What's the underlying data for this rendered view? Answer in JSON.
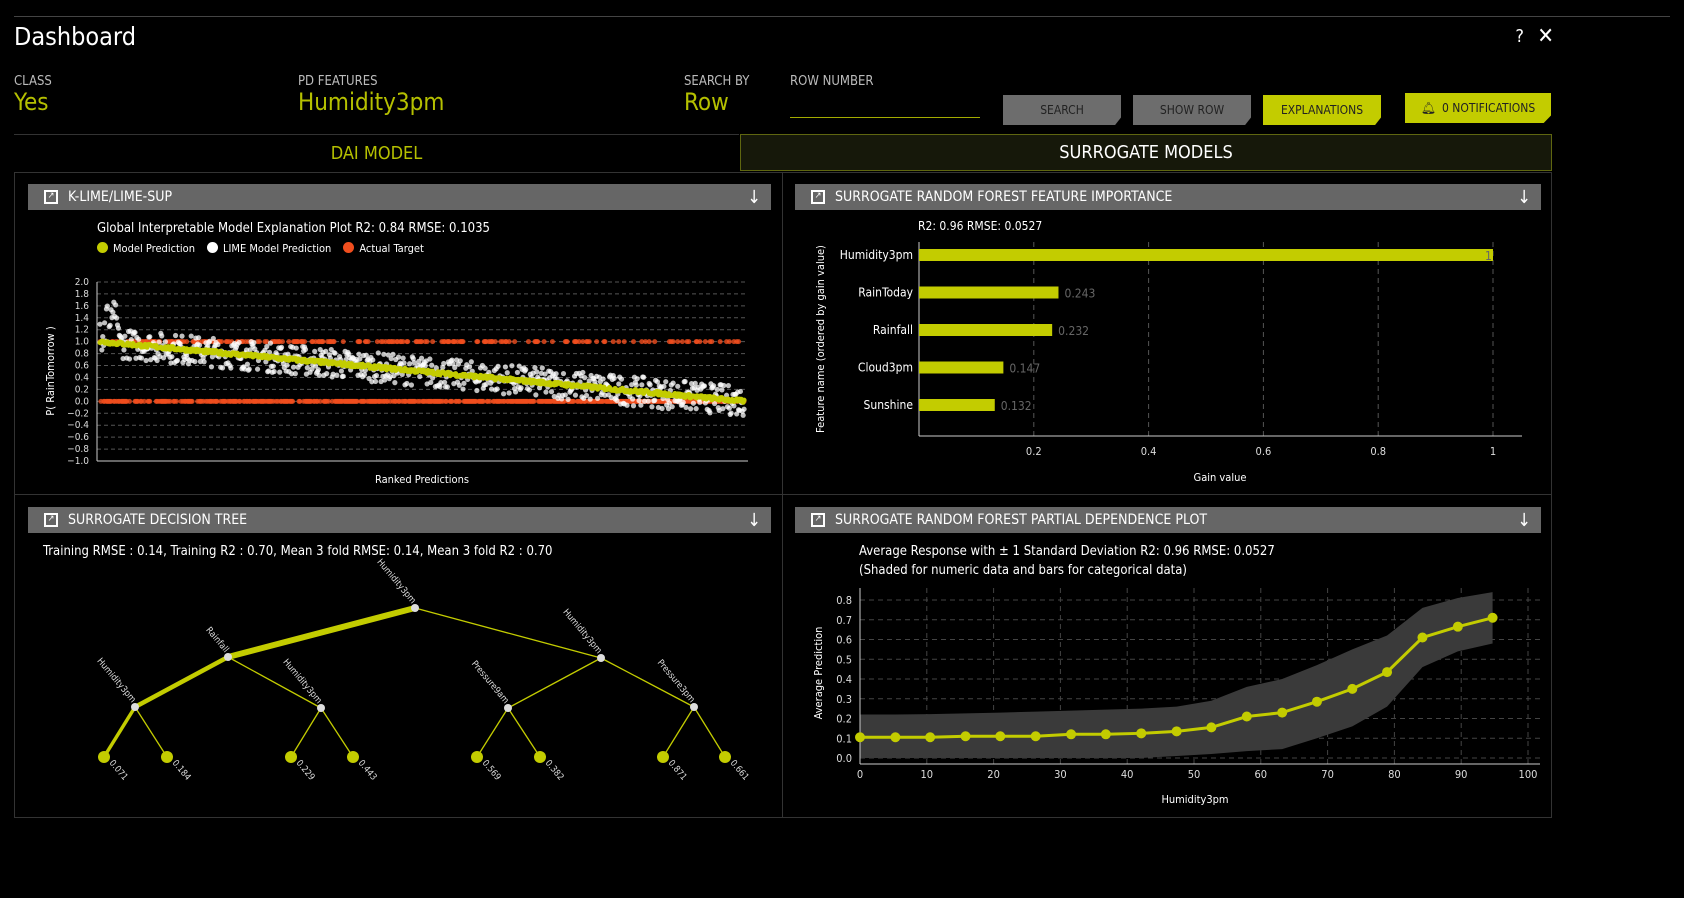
{
  "app": {
    "title": "Dashboard",
    "help_icon": "?",
    "close_icon": "✕"
  },
  "header": {
    "class_label": "CLASS",
    "class_value": "Yes",
    "pd_label": "PD FEATURES",
    "pd_value": "Humidity3pm",
    "search_by_label": "SEARCH BY",
    "search_by_value": "Row",
    "row_number_label": "ROW NUMBER",
    "row_number_value": "",
    "search_btn": "SEARCH",
    "show_row_btn": "SHOW ROW",
    "explanations_btn": "EXPLANATIONS",
    "notifications_btn": "0 NOTIFICATIONS"
  },
  "tabs": [
    {
      "label": "DAI MODEL",
      "active": false
    },
    {
      "label": "SURROGATE MODELS",
      "active": true
    }
  ],
  "colors": {
    "accent": "#c3cc00",
    "actual": "#f04e1e",
    "lime": "#ffffff",
    "panel_header": "#666666"
  },
  "panels": {
    "lime": {
      "title": "K-LIME/LIME-SUP",
      "download_icon": "↓"
    },
    "rf_importance": {
      "title": "SURROGATE RANDOM FOREST FEATURE IMPORTANCE",
      "download_icon": "↓"
    },
    "tree": {
      "title": "SURROGATE DECISION TREE",
      "download_icon": "↓",
      "stats": "Training RMSE : 0.14, Training R2 : 0.70, Mean 3 fold RMSE: 0.14, Mean 3 fold R2 : 0.70"
    },
    "pdp": {
      "title": "SURROGATE RANDOM FOREST PARTIAL DEPENDENCE PLOT",
      "download_icon": "↓"
    }
  },
  "chart_data": [
    {
      "type": "scatter",
      "title": "Global Interpretable Model Explanation Plot R2: 0.84 RMSE: 0.1035",
      "xlabel": "Ranked Predictions",
      "ylabel": "P( RainTomorrow )",
      "ylim": [
        -1,
        2
      ],
      "yticks": [
        "2.0",
        "1.8",
        "1.6",
        "1.4",
        "1.2",
        "1.0",
        "0.8",
        "0.6",
        "0.4",
        "0.2",
        "0.0",
        "−0.2",
        "−0.4",
        "−0.6",
        "−0.8",
        "−1.0"
      ],
      "legend": [
        {
          "name": "Model Prediction",
          "color": "#c3cc00"
        },
        {
          "name": "LIME Model Prediction",
          "color": "#ffffff"
        },
        {
          "name": "Actual Target",
          "color": "#f04e1e"
        }
      ],
      "model_prediction_trend": {
        "start": 1.0,
        "end": 0.0
      },
      "actual_target_values": [
        0,
        1
      ],
      "grid": true
    },
    {
      "type": "bar",
      "orientation": "horizontal",
      "title": "R2: 0.96 RMSE: 0.0527",
      "xlabel": "Gain value",
      "ylabel": "Feature name (ordered by gain value)",
      "categories": [
        "Humidity3pm",
        "RainToday",
        "Rainfall",
        "Cloud3pm",
        "Sunshine"
      ],
      "values": [
        1,
        0.243,
        0.232,
        0.147,
        0.132
      ],
      "value_labels": [
        "1",
        "0.243",
        "0.232",
        "0.147",
        "0.132"
      ],
      "xlim": [
        0,
        1.05
      ],
      "xticks": [
        "0.2",
        "0.4",
        "0.6",
        "0.8",
        "1"
      ],
      "grid": true
    },
    {
      "type": "line",
      "title": "Average Response with ± 1 Standard Deviation R2: 0.96 RMSE: 0.0527",
      "subtitle": "(Shaded for numeric data and bars for categorical data)",
      "xlabel": "Humidity3pm",
      "ylabel": "Average Prediction",
      "xlim": [
        0,
        100
      ],
      "ylim": [
        0,
        0.85
      ],
      "xticks": [
        "0",
        "10",
        "20",
        "30",
        "40",
        "50",
        "60",
        "70",
        "80",
        "90",
        "100"
      ],
      "yticks": [
        "0.0",
        "0.1",
        "0.2",
        "0.3",
        "0.4",
        "0.5",
        "0.6",
        "0.7",
        "0.8"
      ],
      "x": [
        0,
        5.3,
        10.5,
        15.8,
        21,
        26.3,
        31.6,
        36.8,
        42.1,
        47.4,
        52.6,
        57.9,
        63.2,
        68.4,
        73.7,
        78.9,
        84.2,
        89.5,
        94.7
      ],
      "y": [
        0.105,
        0.105,
        0.105,
        0.11,
        0.11,
        0.11,
        0.12,
        0.12,
        0.125,
        0.135,
        0.155,
        0.21,
        0.23,
        0.285,
        0.35,
        0.435,
        0.61,
        0.665,
        0.71
      ],
      "upper": [
        0.22,
        0.22,
        0.222,
        0.226,
        0.23,
        0.235,
        0.24,
        0.245,
        0.25,
        0.26,
        0.29,
        0.36,
        0.4,
        0.47,
        0.55,
        0.62,
        0.76,
        0.81,
        0.84
      ],
      "lower": [
        0,
        0,
        0,
        0,
        0,
        0,
        0,
        0,
        0,
        0.01,
        0.02,
        0.035,
        0.045,
        0.1,
        0.16,
        0.26,
        0.46,
        0.54,
        0.58
      ],
      "grid": true
    },
    {
      "type": "tree",
      "nodes": [
        {
          "label": "Humidity3pm"
        },
        {
          "label": "Rainfall"
        },
        {
          "label": "Humidity3pm"
        },
        {
          "label": "Humidity3pm"
        },
        {
          "label": "Humidity3pm"
        },
        {
          "label": "Pressure9am"
        },
        {
          "label": "Pressure3pm"
        }
      ],
      "leaves": [
        "0.071",
        "0.184",
        "0.229",
        "0.443",
        "0.569",
        "0.382",
        "0.871",
        "0.661"
      ]
    }
  ]
}
